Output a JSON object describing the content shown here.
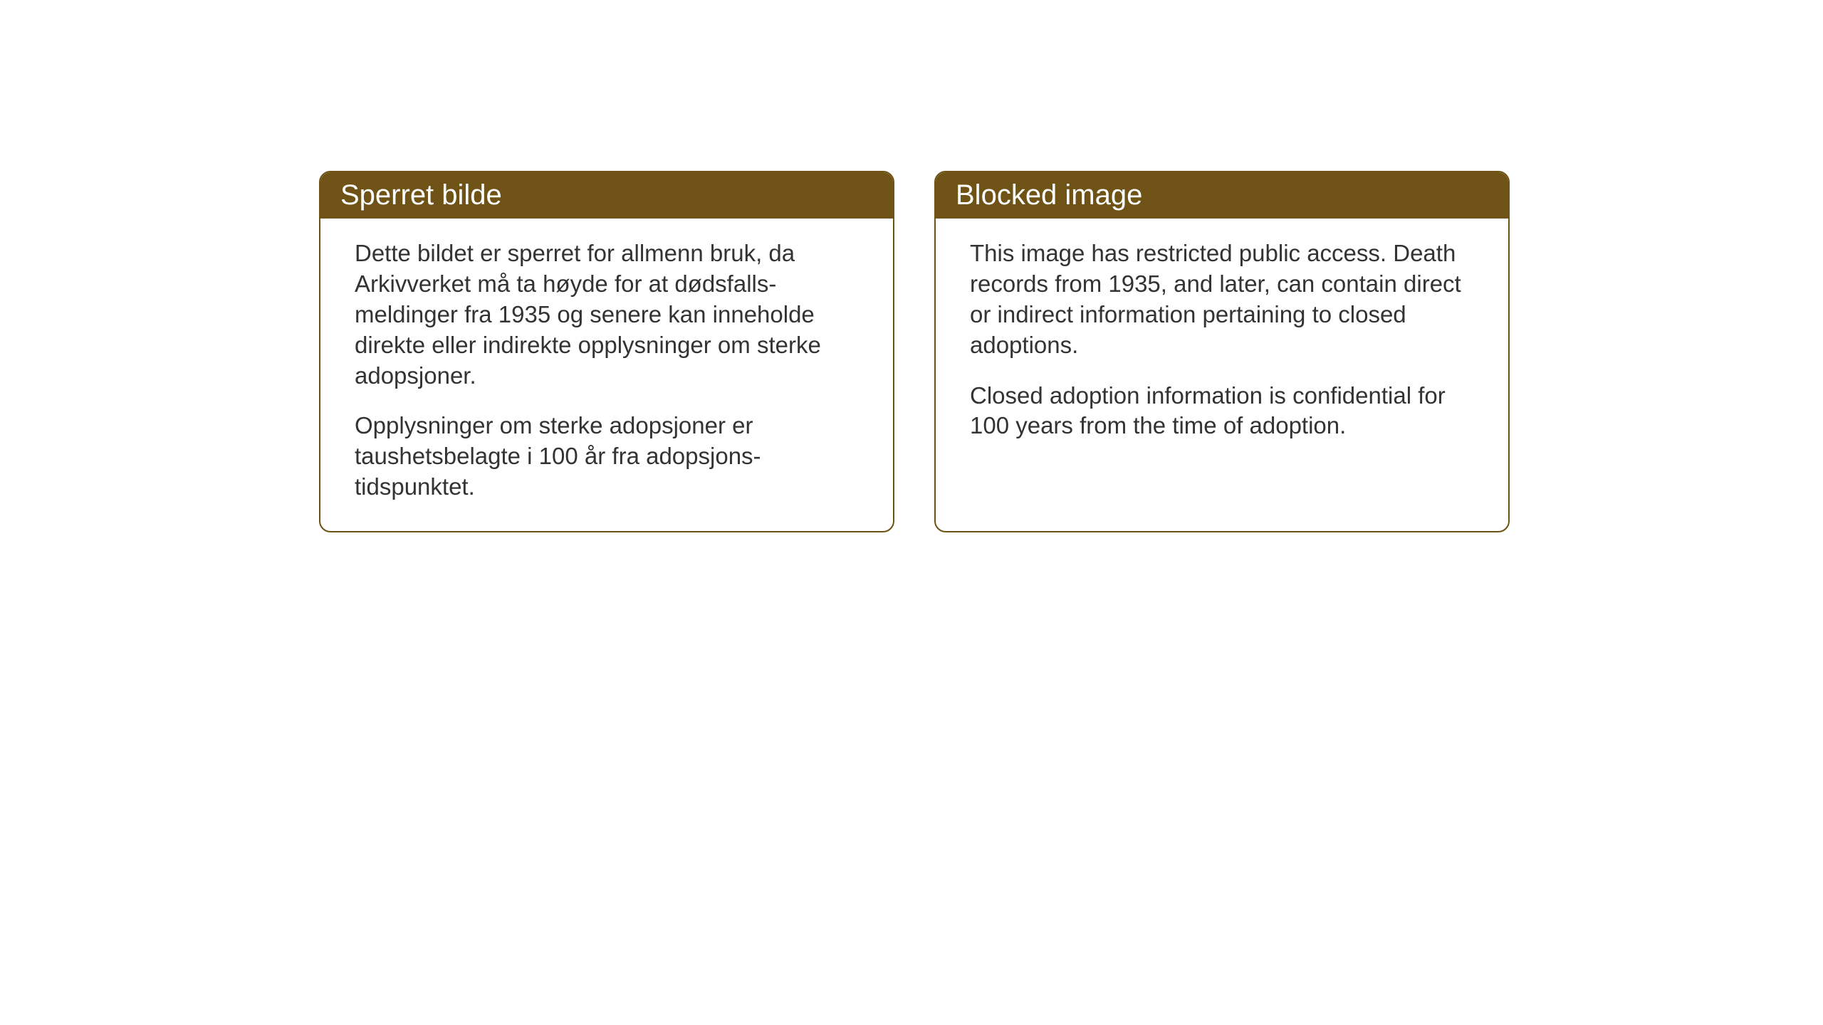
{
  "cards": {
    "norwegian": {
      "title": "Sperret bilde",
      "paragraph1": "Dette bildet er sperret for allmenn bruk, da Arkivverket må ta høyde for at dødsfalls-meldinger fra 1935 og senere kan inneholde direkte eller indirekte opplysninger om sterke adopsjoner.",
      "paragraph2": "Opplysninger om sterke adopsjoner er taushetsbelagte i 100 år fra adopsjons-tidspunktet."
    },
    "english": {
      "title": "Blocked image",
      "paragraph1": "This image has restricted public access. Death records from 1935, and later, can contain direct or indirect information pertaining to closed adoptions.",
      "paragraph2": "Closed adoption information is confidential for 100 years from the time of adoption."
    }
  },
  "styling": {
    "header_background_color": "#6f5215",
    "header_text_color": "#ffffff",
    "border_color": "#6f5215",
    "body_text_color": "#333333",
    "card_background_color": "#ffffff",
    "page_background_color": "#ffffff",
    "header_font_size": 40,
    "body_font_size": 33,
    "border_radius": 16,
    "border_width": 2
  }
}
